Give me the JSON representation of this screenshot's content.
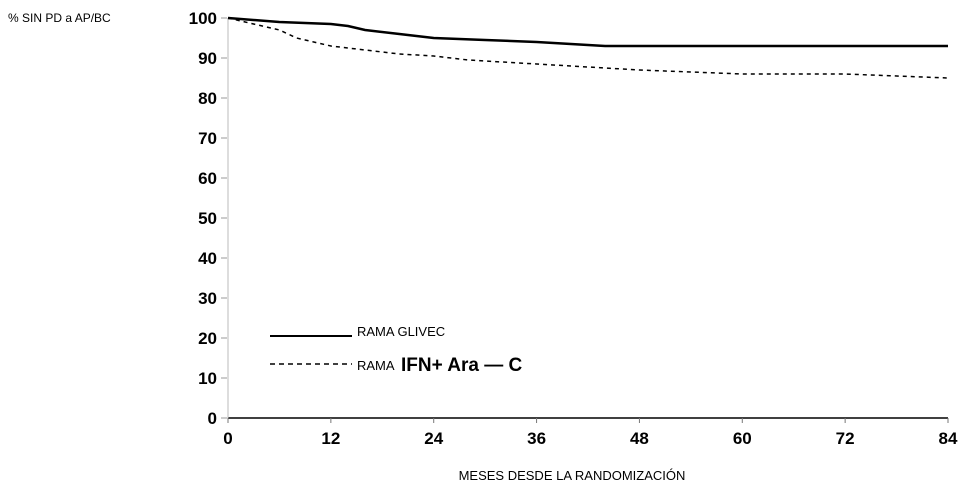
{
  "chart_data": {
    "type": "line",
    "title": "",
    "ylabel": "% SIN PD a AP/BC",
    "xlabel": "MESES DESDE LA RANDOMIZACIÓN",
    "xlim": [
      0,
      84
    ],
    "ylim": [
      0,
      100
    ],
    "x_ticks": [
      0,
      12,
      24,
      36,
      48,
      60,
      72,
      84
    ],
    "y_ticks": [
      0,
      10,
      20,
      30,
      40,
      50,
      60,
      70,
      80,
      90,
      100
    ],
    "grid": false,
    "legend_position": "bottom-left",
    "series": [
      {
        "name": "RAMA GLIVEC",
        "style": "solid",
        "color": "#000000",
        "points": [
          [
            0,
            100
          ],
          [
            6,
            99
          ],
          [
            12,
            98.5
          ],
          [
            14,
            98
          ],
          [
            16,
            97
          ],
          [
            20,
            96
          ],
          [
            24,
            95
          ],
          [
            30,
            94.5
          ],
          [
            36,
            94
          ],
          [
            40,
            93.5
          ],
          [
            44,
            93
          ],
          [
            48,
            93
          ],
          [
            54,
            93
          ],
          [
            60,
            93
          ],
          [
            66,
            93
          ],
          [
            72,
            93
          ],
          [
            78,
            93
          ],
          [
            84,
            93
          ]
        ]
      },
      {
        "name": "RAMA IFN+ Ara — C",
        "style": "dashed",
        "color": "#000000",
        "points": [
          [
            0,
            100
          ],
          [
            2,
            99
          ],
          [
            4,
            98
          ],
          [
            6,
            97
          ],
          [
            8,
            95
          ],
          [
            10,
            94
          ],
          [
            12,
            93
          ],
          [
            16,
            92
          ],
          [
            20,
            91
          ],
          [
            24,
            90.5
          ],
          [
            28,
            89.5
          ],
          [
            32,
            89
          ],
          [
            36,
            88.5
          ],
          [
            40,
            88
          ],
          [
            44,
            87.5
          ],
          [
            48,
            87
          ],
          [
            54,
            86.5
          ],
          [
            60,
            86
          ],
          [
            66,
            86
          ],
          [
            72,
            86
          ],
          [
            78,
            85.5
          ],
          [
            84,
            85
          ]
        ]
      }
    ],
    "legend": {
      "glivec_label": "RAMA GLIVEC",
      "ifn_prefix": "RAMA",
      "ifn_main": "IFN+ Ara — C"
    }
  }
}
